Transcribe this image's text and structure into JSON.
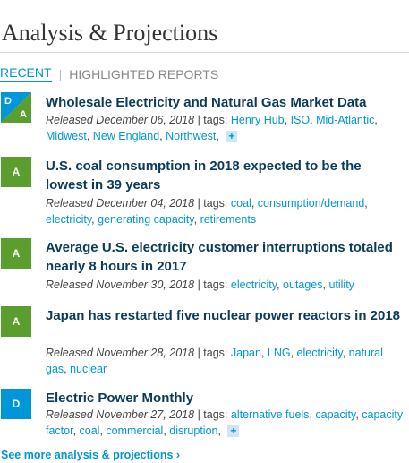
{
  "header": {
    "title": "Analysis & Projections"
  },
  "tabs": {
    "recent": "RECENT",
    "separator": "|",
    "highlighted": "HIGHLIGHTED REPORTS"
  },
  "colors": {
    "accent": "#0096d7",
    "badge_a": "#5a9e2e",
    "badge_d": "#0096d7",
    "title": "#0b3b5a"
  },
  "items": [
    {
      "badge": "D/A",
      "badge_d": "D",
      "badge_a": "A",
      "title": "Wholesale Electricity and Natural Gas Market Data",
      "released": "Released December 06, 2018",
      "tags_prefix": "| tags:",
      "tags": [
        "Henry Hub",
        "ISO",
        "Mid-Atlantic",
        "Midwest",
        "New England",
        "Northwest"
      ],
      "more": "+"
    },
    {
      "badge": "A",
      "title": "U.S. coal consumption in 2018 expected to be the lowest in 39 years",
      "released": "Released December 04, 2018",
      "tags_prefix": "| tags:",
      "tags": [
        "coal",
        "consumption/demand",
        "electricity",
        "generating capacity",
        "retirements"
      ]
    },
    {
      "badge": "A",
      "title": "Average U.S. electricity customer interruptions totaled nearly 8 hours in 2017",
      "released": "Released November 30, 2018",
      "tags_prefix": "| tags:",
      "tags": [
        "electricity",
        "outages",
        "utility"
      ]
    },
    {
      "badge": "A",
      "title": "Japan has restarted five nuclear power reactors in 2018",
      "released": "Released November 28, 2018",
      "tags_prefix": "| tags:",
      "tags": [
        "Japan",
        "LNG",
        "electricity",
        "natural gas",
        "nuclear"
      ]
    },
    {
      "badge": "D",
      "title": "Electric Power Monthly",
      "released": "Released November 27, 2018",
      "tags_prefix": "| tags:",
      "tags": [
        "alternative fuels",
        "capacity",
        "capacity factor",
        "coal",
        "commercial",
        "disruption"
      ],
      "more": "+"
    }
  ],
  "footer": {
    "see_more": "See more analysis & projections ›"
  }
}
